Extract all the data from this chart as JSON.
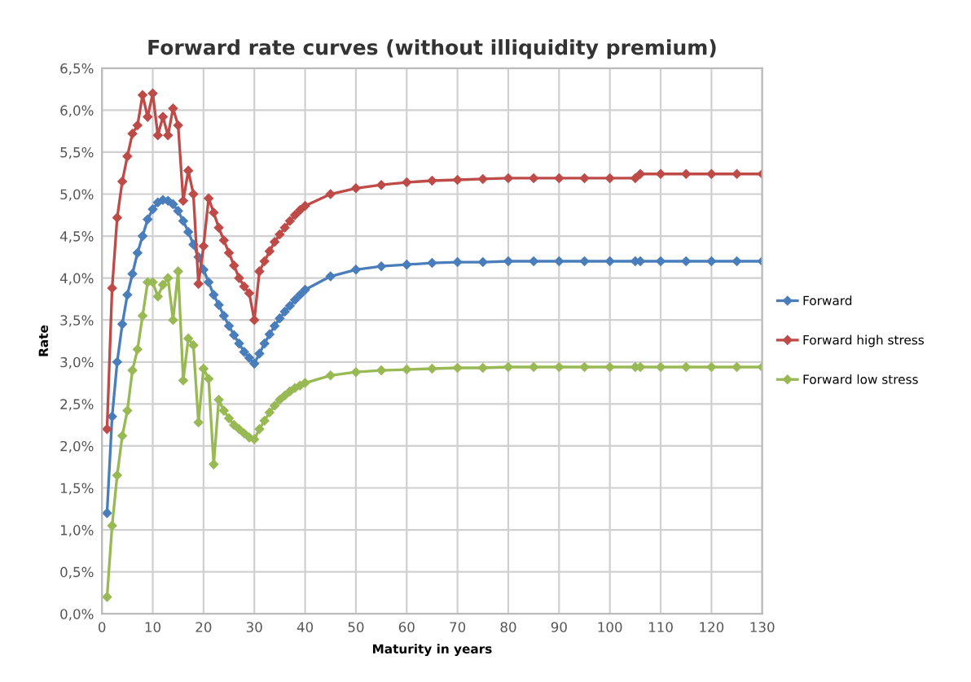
{
  "chart_data": {
    "type": "line",
    "title": "Forward rate curves (without illiquidity premium)",
    "xlabel": "Maturity in years",
    "ylabel": "Rate",
    "x": [
      1,
      2,
      3,
      4,
      5,
      6,
      7,
      8,
      9,
      10,
      11,
      12,
      13,
      14,
      15,
      16,
      17,
      18,
      19,
      20,
      21,
      22,
      23,
      24,
      25,
      26,
      27,
      28,
      29,
      30,
      31,
      32,
      33,
      34,
      35,
      36,
      37,
      38,
      39,
      40,
      45,
      50,
      55,
      60,
      65,
      70,
      75,
      80,
      85,
      90,
      95,
      100,
      105,
      106,
      110,
      115,
      120,
      125,
      130
    ],
    "series": [
      {
        "name": "Forward",
        "color": "#4a7ebb",
        "values": [
          1.2,
          2.35,
          3.0,
          3.45,
          3.8,
          4.05,
          4.3,
          4.5,
          4.7,
          4.82,
          4.9,
          4.93,
          4.92,
          4.88,
          4.8,
          4.68,
          4.55,
          4.4,
          4.25,
          4.1,
          3.95,
          3.8,
          3.68,
          3.55,
          3.43,
          3.32,
          3.22,
          3.12,
          3.05,
          2.98,
          3.1,
          3.22,
          3.33,
          3.43,
          3.52,
          3.6,
          3.67,
          3.74,
          3.8,
          3.86,
          4.02,
          4.1,
          4.14,
          4.16,
          4.18,
          4.19,
          4.19,
          4.2,
          4.2,
          4.2,
          4.2,
          4.2,
          4.2,
          4.2,
          4.2,
          4.2,
          4.2,
          4.2,
          4.2
        ]
      },
      {
        "name": "Forward high stress",
        "color": "#be4b48",
        "values": [
          2.2,
          3.88,
          4.72,
          5.15,
          5.45,
          5.72,
          5.82,
          6.18,
          5.92,
          6.2,
          5.7,
          5.92,
          5.7,
          6.02,
          5.82,
          4.92,
          5.28,
          5.0,
          3.93,
          4.38,
          4.95,
          4.78,
          4.6,
          4.45,
          4.3,
          4.15,
          4.0,
          3.9,
          3.82,
          3.5,
          4.08,
          4.2,
          4.32,
          4.43,
          4.52,
          4.6,
          4.68,
          4.75,
          4.81,
          4.86,
          5.0,
          5.07,
          5.11,
          5.14,
          5.16,
          5.17,
          5.18,
          5.19,
          5.19,
          5.19,
          5.19,
          5.19,
          5.19,
          5.24,
          5.24,
          5.24,
          5.24,
          5.24,
          5.24
        ]
      },
      {
        "name": "Forward low stress",
        "color": "#98b954",
        "values": [
          0.2,
          1.05,
          1.65,
          2.12,
          2.42,
          2.9,
          3.15,
          3.55,
          3.95,
          3.95,
          3.78,
          3.92,
          4.0,
          3.5,
          4.08,
          2.78,
          3.28,
          3.2,
          2.28,
          2.92,
          2.8,
          1.78,
          2.55,
          2.42,
          2.33,
          2.25,
          2.2,
          2.15,
          2.1,
          2.08,
          2.2,
          2.3,
          2.4,
          2.48,
          2.55,
          2.6,
          2.65,
          2.69,
          2.72,
          2.75,
          2.84,
          2.88,
          2.9,
          2.91,
          2.92,
          2.93,
          2.93,
          2.94,
          2.94,
          2.94,
          2.94,
          2.94,
          2.94,
          2.94,
          2.94,
          2.94,
          2.94,
          2.94,
          2.94
        ]
      }
    ],
    "xlim": [
      0,
      130
    ],
    "xticks": [
      0,
      10,
      20,
      30,
      40,
      50,
      60,
      70,
      80,
      90,
      100,
      110,
      120,
      130
    ],
    "ylim": [
      0,
      6.5
    ],
    "yticks": [
      {
        "value": 0,
        "label": "0,0%"
      },
      {
        "value": 0.5,
        "label": "0,5%"
      },
      {
        "value": 1,
        "label": "1,0%"
      },
      {
        "value": 1.5,
        "label": "1,5%"
      },
      {
        "value": 2,
        "label": "2,0%"
      },
      {
        "value": 2.5,
        "label": "2,5%"
      },
      {
        "value": 3,
        "label": "3,0%"
      },
      {
        "value": 3.5,
        "label": "3,5%"
      },
      {
        "value": 4,
        "label": "4,0%"
      },
      {
        "value": 4.5,
        "label": "4,5%"
      },
      {
        "value": 5,
        "label": "5,0%"
      },
      {
        "value": 5.5,
        "label": "5,5%"
      },
      {
        "value": 6,
        "label": "6,0%"
      },
      {
        "value": 6.5,
        "label": "6,5%"
      }
    ],
    "grid": true,
    "legend": "right",
    "marker": "diamond",
    "line_style": "solid"
  }
}
